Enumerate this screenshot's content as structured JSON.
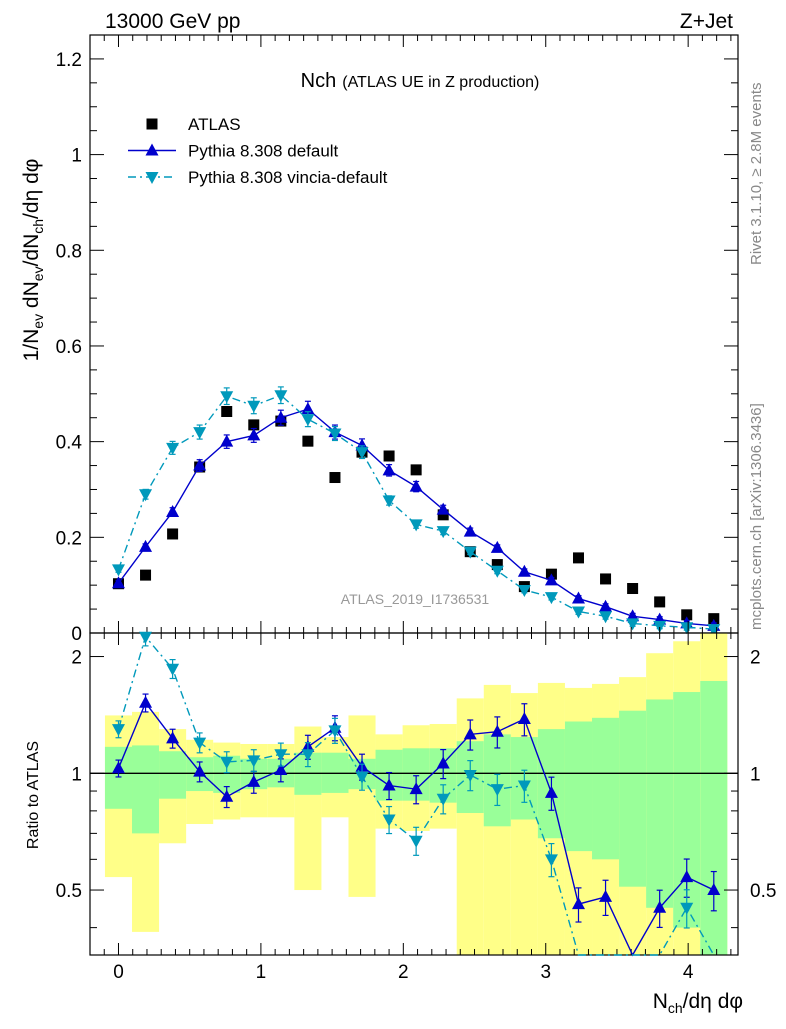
{
  "header": {
    "left": "13000 GeV pp",
    "right": "Z+Jet"
  },
  "side_labels": {
    "top": "Rivet 3.1.10, ≥ 2.8M events",
    "bottom": "mcplots.cern.ch [arXiv:1306.3436]"
  },
  "chart_data": {
    "type": "line",
    "title": "Nch",
    "subtitle": "(ATLAS UE in Z production)",
    "watermark": "ATLAS_2019_I1736531",
    "xlabel": "N_ch/dη dφ",
    "ylabel": "1/N_ev dN_ev/dN_ch/dη dφ",
    "ratio_ylabel": "Ratio to ATLAS",
    "xlim": [
      -0.2,
      4.35
    ],
    "ylim": [
      0,
      1.25
    ],
    "ratio_ylim": [
      0.34,
      2.3
    ],
    "x_ticks": [
      "0",
      "1",
      "2",
      "3",
      "4"
    ],
    "y_ticks": [
      "0",
      "0.2",
      "0.4",
      "0.6",
      "0.8",
      "1",
      "1.2"
    ],
    "ratio_ticks": [
      "0.5",
      "1",
      "2"
    ],
    "legend_position": "top-left",
    "x": [
      0.0,
      0.19,
      0.38,
      0.57,
      0.76,
      0.95,
      1.14,
      1.33,
      1.52,
      1.71,
      1.9,
      2.09,
      2.28,
      2.47,
      2.66,
      2.85,
      3.04,
      3.23,
      3.42,
      3.61,
      3.8,
      3.99,
      4.18
    ],
    "series": [
      {
        "name": "ATLAS",
        "color": "#000000",
        "marker": "square",
        "values": [
          0.103,
          0.121,
          0.207,
          0.347,
          0.463,
          0.435,
          0.443,
          0.401,
          0.325,
          0.378,
          0.37,
          0.341,
          0.247,
          0.17,
          0.143,
          0.097,
          0.123,
          0.157,
          0.113,
          0.093,
          0.065,
          0.038,
          0.03
        ]
      },
      {
        "name": "Pythia 8.308 default",
        "color": "#0000cc",
        "marker": "triangle-up",
        "line": "solid",
        "values": [
          0.104,
          0.18,
          0.253,
          0.35,
          0.4,
          0.413,
          0.45,
          0.468,
          0.42,
          0.392,
          0.34,
          0.306,
          0.258,
          0.212,
          0.178,
          0.128,
          0.11,
          0.072,
          0.055,
          0.035,
          0.028,
          0.02,
          0.015
        ],
        "ratio": [
          1.03,
          1.52,
          1.23,
          1.01,
          0.87,
          0.95,
          1.02,
          1.17,
          1.31,
          1.04,
          0.93,
          0.91,
          1.06,
          1.26,
          1.28,
          1.38,
          0.89,
          0.46,
          0.48,
          0.3,
          0.45,
          0.54,
          0.5
        ]
      },
      {
        "name": "Pythia 8.308 vincia-default",
        "color": "#0099bb",
        "marker": "triangle-down",
        "line": "dashdot",
        "values": [
          0.133,
          0.29,
          0.387,
          0.42,
          0.495,
          0.475,
          0.497,
          0.447,
          0.417,
          0.378,
          0.277,
          0.227,
          0.213,
          0.17,
          0.13,
          0.09,
          0.075,
          0.045,
          0.035,
          0.02,
          0.015,
          0.012,
          0.008
        ],
        "ratio": [
          1.3,
          2.25,
          1.86,
          1.2,
          1.07,
          1.08,
          1.12,
          1.12,
          1.29,
          0.98,
          0.76,
          0.67,
          0.86,
          0.99,
          0.91,
          0.93,
          0.6,
          0.28,
          0.3,
          0.2,
          0.2,
          0.45,
          0.3
        ]
      }
    ],
    "ratio_bands": {
      "inner_color": "#99ff99",
      "outer_color": "#ffff88",
      "inner_lo": [
        0.81,
        0.7,
        0.86,
        0.9,
        0.89,
        0.91,
        0.92,
        0.88,
        0.89,
        0.91,
        0.85,
        0.85,
        0.84,
        0.79,
        0.73,
        0.76,
        0.68,
        0.63,
        0.6,
        0.51,
        0.45,
        0.4,
        0.34
      ],
      "inner_hi": [
        1.17,
        1.18,
        1.14,
        1.1,
        1.11,
        1.09,
        1.09,
        1.13,
        1.13,
        1.09,
        1.15,
        1.16,
        1.16,
        1.21,
        1.26,
        1.24,
        1.3,
        1.36,
        1.39,
        1.45,
        1.55,
        1.62,
        1.73
      ],
      "outer_lo": [
        0.54,
        0.39,
        0.66,
        0.74,
        0.76,
        0.77,
        0.77,
        0.5,
        0.77,
        0.48,
        0.72,
        0.71,
        0.72,
        0.34,
        0.34,
        0.34,
        0.34,
        0.34,
        0.34,
        0.34,
        0.34,
        0.34,
        0.34
      ],
      "outer_hi": [
        1.41,
        1.44,
        1.3,
        1.22,
        1.2,
        1.19,
        1.19,
        1.32,
        1.24,
        1.41,
        1.26,
        1.33,
        1.34,
        1.56,
        1.69,
        1.61,
        1.71,
        1.66,
        1.7,
        1.77,
        2.04,
        2.19,
        2.35
      ]
    }
  }
}
